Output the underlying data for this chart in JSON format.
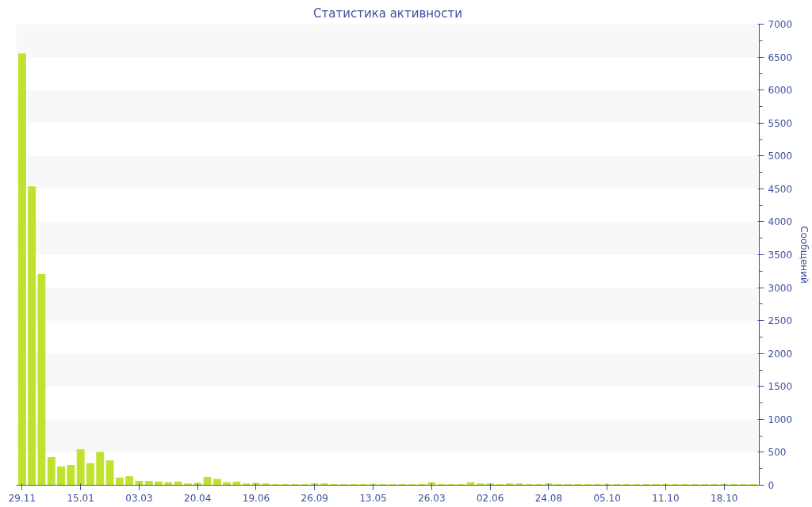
{
  "chart_data": {
    "type": "bar",
    "title": "Статистика активности",
    "ylabel": "Сообщений",
    "categories": [
      "29.11",
      null,
      null,
      null,
      null,
      null,
      "15.01",
      null,
      null,
      null,
      null,
      null,
      "03.03",
      null,
      null,
      null,
      null,
      null,
      "20.04",
      null,
      null,
      null,
      null,
      null,
      "19.06",
      null,
      null,
      null,
      null,
      null,
      "26.09",
      null,
      null,
      null,
      null,
      null,
      "13.05",
      null,
      null,
      null,
      null,
      null,
      "26.03",
      null,
      null,
      null,
      null,
      null,
      "02.06",
      null,
      null,
      null,
      null,
      null,
      "24.08",
      null,
      null,
      null,
      null,
      null,
      "05.10",
      null,
      null,
      null,
      null,
      null,
      "11.10",
      null,
      null,
      null,
      null,
      null,
      "18.10",
      null,
      null,
      null
    ],
    "values": [
      6550,
      4530,
      3200,
      420,
      280,
      300,
      540,
      330,
      500,
      370,
      110,
      130,
      60,
      60,
      50,
      40,
      50,
      20,
      30,
      120,
      90,
      40,
      50,
      20,
      30,
      20,
      10,
      10,
      10,
      10,
      20,
      20,
      10,
      10,
      10,
      10,
      10,
      10,
      10,
      10,
      10,
      10,
      40,
      10,
      10,
      10,
      40,
      20,
      20,
      10,
      20,
      20,
      10,
      10,
      20,
      10,
      10,
      10,
      10,
      10,
      10,
      10,
      10,
      10,
      10,
      10,
      10,
      10,
      10,
      10,
      10,
      10,
      10,
      10,
      10,
      10
    ],
    "color": "#bfe22e",
    "ylim": [
      0,
      7000
    ],
    "yticks": [
      0,
      500,
      1000,
      1500,
      2000,
      2500,
      3000,
      3500,
      4000,
      4500,
      5000,
      5500,
      6000,
      6500,
      7000
    ]
  }
}
